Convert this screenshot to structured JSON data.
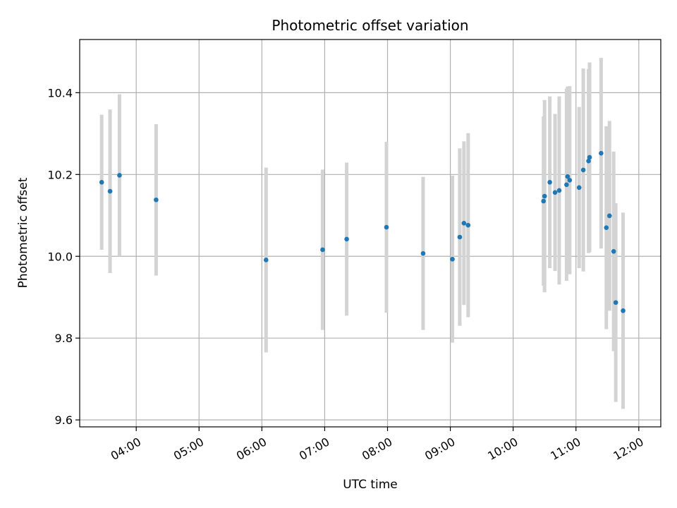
{
  "chart_data": {
    "type": "scatter",
    "title": "Photometric offset variation",
    "xlabel": "UTC time",
    "ylabel": "Photometric offset",
    "x_ticks": [
      "04:00",
      "05:00",
      "06:00",
      "07:00",
      "08:00",
      "09:00",
      "10:00",
      "11:00",
      "12:00"
    ],
    "y_ticks": [
      "9.6",
      "9.8",
      "10.0",
      "10.2",
      "10.4"
    ],
    "y_tick_values": [
      9.6,
      9.8,
      10.0,
      10.2,
      10.4
    ],
    "xlim": [
      "03:06",
      "12:21"
    ],
    "ylim": [
      9.583,
      10.53
    ],
    "grid": true,
    "colors": {
      "point": "#1f77b4",
      "errorbar": "#d3d3d3",
      "grid": "#b0b0b0"
    },
    "series": [
      {
        "points": [
          {
            "x": "03:27",
            "y": 10.181,
            "err": 0.165
          },
          {
            "x": "03:35",
            "y": 10.159,
            "err": 0.2
          },
          {
            "x": "03:44",
            "y": 10.198,
            "err": 0.198
          },
          {
            "x": "04:19",
            "y": 10.138,
            "err": 0.185
          },
          {
            "x": "06:04",
            "y": 9.991,
            "err": 0.226
          },
          {
            "x": "06:58",
            "y": 10.016,
            "err": 0.196
          },
          {
            "x": "07:21",
            "y": 10.042,
            "err": 0.187
          },
          {
            "x": "07:59",
            "y": 10.071,
            "err": 0.209
          },
          {
            "x": "08:34",
            "y": 10.007,
            "err": 0.187
          },
          {
            "x": "09:02",
            "y": 9.993,
            "err": 0.204
          },
          {
            "x": "09:09",
            "y": 10.047,
            "err": 0.217
          },
          {
            "x": "09:13",
            "y": 10.081,
            "err": 0.2
          },
          {
            "x": "09:17",
            "y": 10.076,
            "err": 0.225
          },
          {
            "x": "10:29",
            "y": 10.135,
            "err": 0.207
          },
          {
            "x": "10:30",
            "y": 10.147,
            "err": 0.235
          },
          {
            "x": "10:35",
            "y": 10.181,
            "err": 0.21
          },
          {
            "x": "10:40",
            "y": 10.156,
            "err": 0.192
          },
          {
            "x": "10:44",
            "y": 10.161,
            "err": 0.23
          },
          {
            "x": "10:51",
            "y": 10.175,
            "err": 0.235
          },
          {
            "x": "10:52",
            "y": 10.195,
            "err": 0.22
          },
          {
            "x": "10:54",
            "y": 10.186,
            "err": 0.23
          },
          {
            "x": "11:03",
            "y": 10.168,
            "err": 0.197
          },
          {
            "x": "11:07",
            "y": 10.211,
            "err": 0.248
          },
          {
            "x": "11:12",
            "y": 10.233,
            "err": 0.225
          },
          {
            "x": "11:13",
            "y": 10.242,
            "err": 0.232
          },
          {
            "x": "11:24",
            "y": 10.252,
            "err": 0.233
          },
          {
            "x": "11:29",
            "y": 10.07,
            "err": 0.248
          },
          {
            "x": "11:32",
            "y": 10.099,
            "err": 0.232
          },
          {
            "x": "11:36",
            "y": 10.012,
            "err": 0.244
          },
          {
            "x": "11:38",
            "y": 9.887,
            "err": 0.243
          },
          {
            "x": "11:45",
            "y": 9.867,
            "err": 0.24
          }
        ]
      }
    ]
  }
}
